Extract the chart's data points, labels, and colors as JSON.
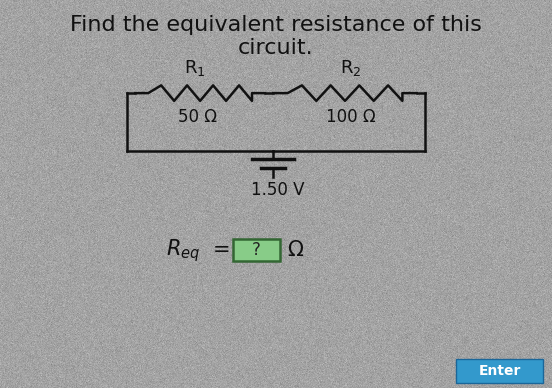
{
  "title_line1": "Find the equivalent resistance of this",
  "title_line2": "circuit.",
  "bg_color": "#c8c8c8",
  "title_fontsize": 16,
  "R1_label": "R$_1$",
  "R2_label": "R$_2$",
  "R1_value": "50 Ω",
  "R2_value": "100 Ω",
  "voltage_label": "1.50 V",
  "req_suffix": "Ω",
  "enter_bg": "#3399cc",
  "enter_text": "Enter",
  "enter_text_color": "#ffffff",
  "wire_color": "#111111",
  "text_color": "#111111",
  "box_color": "#88cc88",
  "box_edge_color": "#336633"
}
